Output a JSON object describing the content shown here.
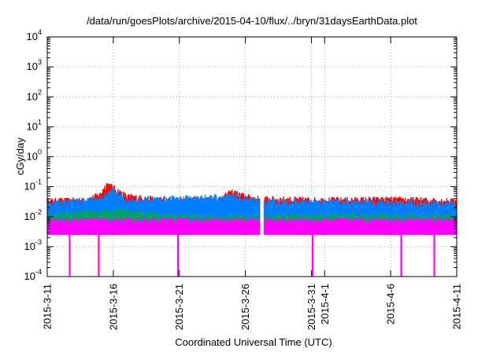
{
  "chart_data": {
    "type": "line",
    "title": "/data/run/goesPlots/archive/2015-04-10/flux/../bryn/31daysEarthData.plot",
    "xlabel": "Coordinated Universal Time (UTC)",
    "ylabel": "cGy/day",
    "yscale": "log",
    "ylim": [
      0.0001,
      10000
    ],
    "y_ticks": [
      {
        "value": 0.0001,
        "base": "10",
        "exp": "-4"
      },
      {
        "value": 0.001,
        "base": "10",
        "exp": "-3"
      },
      {
        "value": 0.01,
        "base": "10",
        "exp": "-2"
      },
      {
        "value": 0.1,
        "base": "10",
        "exp": "-1"
      },
      {
        "value": 1,
        "base": "10",
        "exp": "0"
      },
      {
        "value": 10,
        "base": "10",
        "exp": "1"
      },
      {
        "value": 100,
        "base": "10",
        "exp": "2"
      },
      {
        "value": 1000,
        "base": "10",
        "exp": "3"
      },
      {
        "value": 10000,
        "base": "10",
        "exp": "4"
      }
    ],
    "xlim": [
      "2015-03-11",
      "2015-04-11"
    ],
    "x_ticks": [
      {
        "date": "2015-03-11",
        "label": "2015-3-11"
      },
      {
        "date": "2015-03-16",
        "label": "2015-3-16"
      },
      {
        "date": "2015-03-21",
        "label": "2015-3-21"
      },
      {
        "date": "2015-03-26",
        "label": "2015-3-26"
      },
      {
        "date": "2015-03-31",
        "label": "2015-3-31"
      },
      {
        "date": "2015-04-01",
        "label": "2015-4-1"
      },
      {
        "date": "2015-04-06",
        "label": "2015-4-6"
      },
      {
        "date": "2015-04-11",
        "label": "2015-4-11"
      }
    ],
    "grid": true,
    "legend": "none",
    "series": [
      {
        "color": "#ff0000",
        "points": [
          {
            "x": "2015-03-11",
            "y": 0.042
          },
          {
            "x": "2015-03-14",
            "y": 0.045
          },
          {
            "x": "2015-03-15",
            "y": 0.07
          },
          {
            "x": "2015-03-15.5",
            "y": 0.16
          },
          {
            "x": "2015-03-16",
            "y": 0.12
          },
          {
            "x": "2015-03-17",
            "y": 0.06
          },
          {
            "x": "2015-03-20",
            "y": 0.045
          },
          {
            "x": "2015-03-24",
            "y": 0.05
          },
          {
            "x": "2015-03-25",
            "y": 0.085
          },
          {
            "x": "2015-03-26",
            "y": 0.06
          },
          {
            "x": "2015-03-27",
            "y": 0.05
          },
          {
            "x": "2015-04-01",
            "y": 0.045
          },
          {
            "x": "2015-04-06",
            "y": 0.048
          },
          {
            "x": "2015-04-11",
            "y": 0.042
          }
        ]
      },
      {
        "color": "#0080ff",
        "points": [
          {
            "x": "2015-03-11",
            "y": 0.035
          },
          {
            "x": "2015-03-15",
            "y": 0.05
          },
          {
            "x": "2015-03-16",
            "y": 0.1
          },
          {
            "x": "2015-03-17",
            "y": 0.045
          },
          {
            "x": "2015-03-25",
            "y": 0.06
          },
          {
            "x": "2015-03-27",
            "y": 0.04
          },
          {
            "x": "2015-04-06",
            "y": 0.038
          },
          {
            "x": "2015-04-11",
            "y": 0.035
          }
        ]
      },
      {
        "color": "#00a060",
        "points": [
          {
            "x": "2015-03-11",
            "y": 0.014
          },
          {
            "x": "2015-03-16",
            "y": 0.02
          },
          {
            "x": "2015-03-21",
            "y": 0.013
          },
          {
            "x": "2015-03-26",
            "y": 0.012
          },
          {
            "x": "2015-04-01",
            "y": 0.014
          },
          {
            "x": "2015-04-11",
            "y": 0.013
          }
        ]
      },
      {
        "color": "#ff00ff",
        "points": [
          {
            "x": "2015-03-11",
            "y": 0.0025
          },
          {
            "x": "2015-04-11",
            "y": 0.0025
          }
        ]
      }
    ]
  }
}
